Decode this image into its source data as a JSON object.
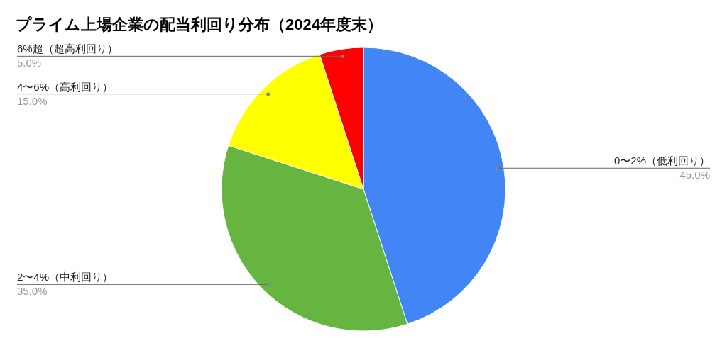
{
  "chart_data": {
    "type": "pie",
    "title": "プライム上場企業の配当利回り分布（2024年度末）",
    "categories": [
      "0〜2%（低利回り）",
      "2〜4%（中利回り）",
      "4〜6%（高利回り）",
      "6%超（超高利回り）"
    ],
    "values": [
      45,
      35,
      15,
      5
    ],
    "colors": [
      "#4285f4",
      "#65b540",
      "#ffff00",
      "#ff0000"
    ],
    "value_labels": [
      "45.0%",
      "35.0%",
      "15.0%",
      "5.0%"
    ]
  }
}
